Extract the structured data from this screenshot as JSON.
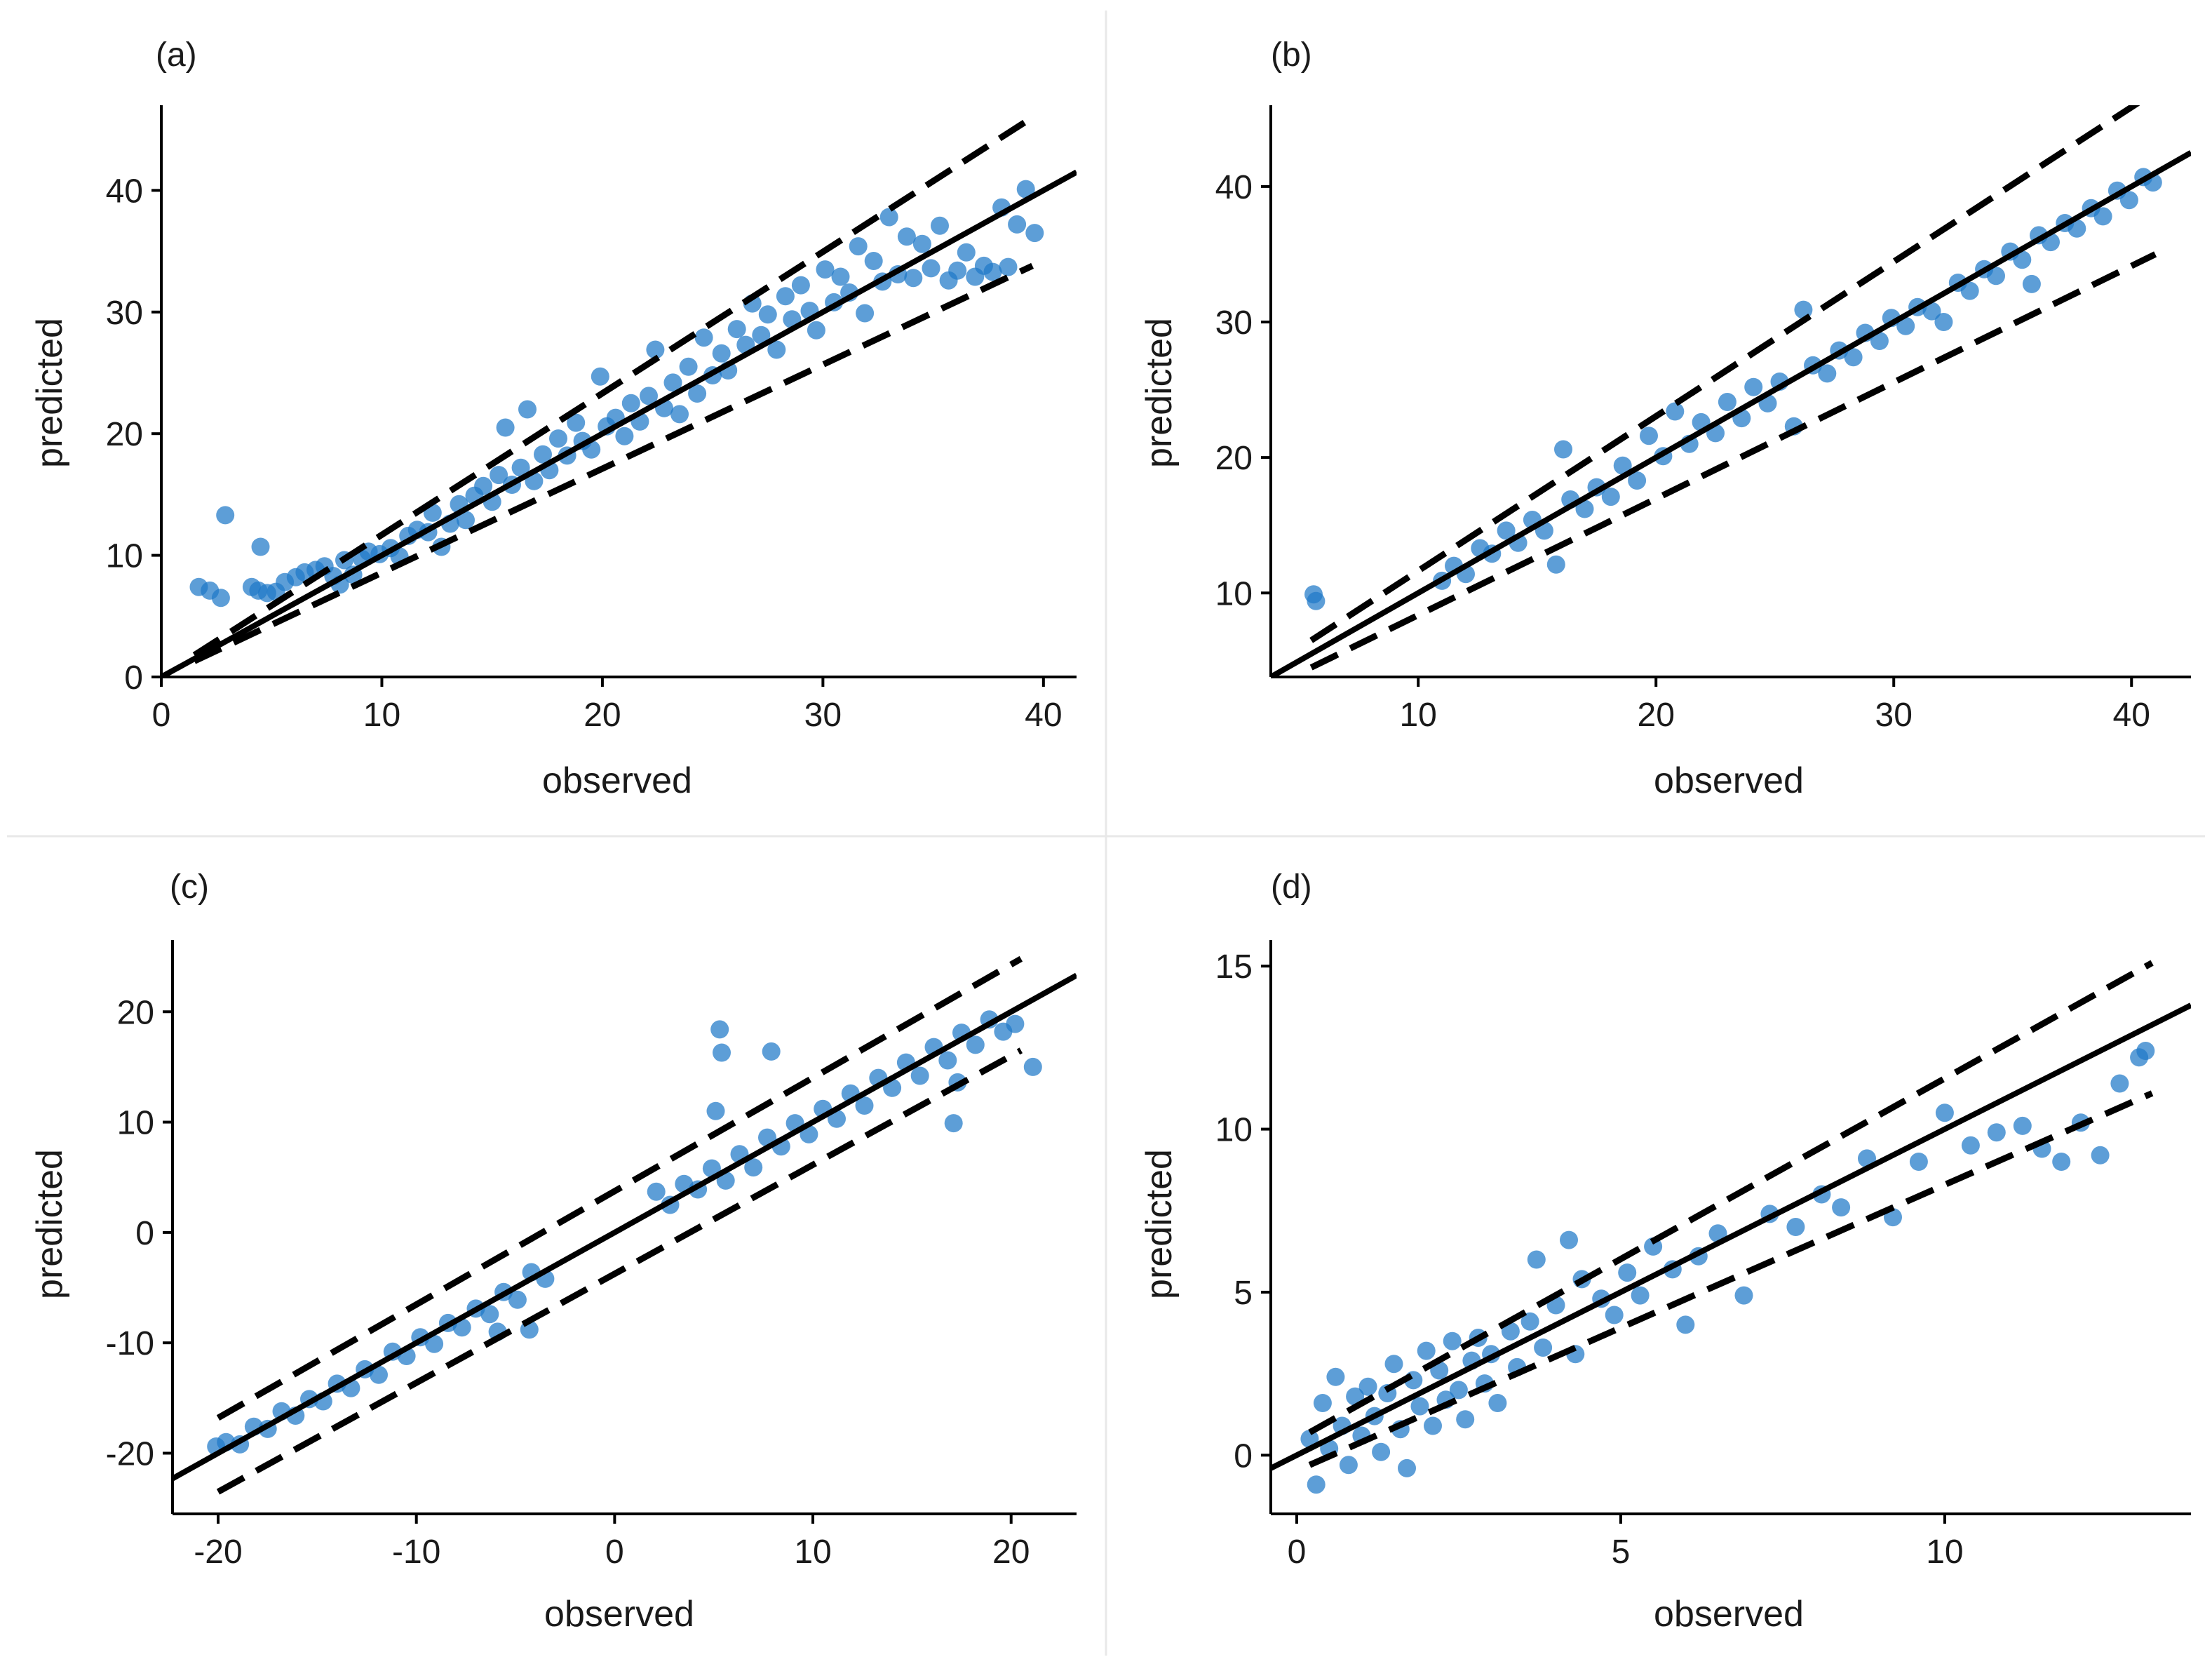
{
  "colors": {
    "point": "#1f78c8",
    "line": "#000000",
    "separator": "#e8e8e8"
  },
  "chart_data": [
    {
      "type": "scatter",
      "panel_label": "(a)",
      "xlabel": "observed",
      "ylabel": "predicted",
      "xlim": [
        0,
        41.5
      ],
      "ylim": [
        0,
        47
      ],
      "xticks": [
        0,
        10,
        20,
        30,
        40
      ],
      "yticks": [
        0,
        10,
        20,
        30,
        40
      ],
      "xtick_labels": [
        "0",
        "10",
        "20",
        "30",
        "40"
      ],
      "ytick_labels": [
        "0",
        "10",
        "20",
        "30",
        "40"
      ],
      "fit_line": {
        "slope": 1.0,
        "intercept": 0,
        "x": [
          0,
          41.5
        ]
      },
      "band_upper": {
        "x": [
          1.5,
          39.5
        ],
        "y": [
          1.8,
          46.0
        ]
      },
      "band_lower": {
        "x": [
          1.5,
          39.5
        ],
        "y": [
          1.3,
          33.8
        ]
      },
      "points": [
        [
          1.7,
          7.4
        ],
        [
          2.2,
          7.1
        ],
        [
          2.7,
          6.5
        ],
        [
          2.9,
          13.3
        ],
        [
          4.1,
          7.4
        ],
        [
          4.4,
          7.1
        ],
        [
          4.5,
          10.7
        ],
        [
          4.8,
          6.9
        ],
        [
          5.2,
          7.0
        ],
        [
          5.6,
          7.8
        ],
        [
          6.1,
          8.2
        ],
        [
          6.5,
          8.6
        ],
        [
          7.0,
          8.8
        ],
        [
          7.4,
          9.1
        ],
        [
          7.8,
          8.3
        ],
        [
          8.1,
          7.6
        ],
        [
          8.3,
          9.6
        ],
        [
          8.7,
          8.4
        ],
        [
          9.1,
          9.7
        ],
        [
          9.4,
          10.3
        ],
        [
          9.9,
          10.1
        ],
        [
          10.4,
          10.6
        ],
        [
          10.8,
          9.9
        ],
        [
          11.2,
          11.6
        ],
        [
          11.6,
          12.1
        ],
        [
          12.1,
          11.9
        ],
        [
          12.3,
          13.5
        ],
        [
          12.7,
          10.7
        ],
        [
          13.1,
          12.6
        ],
        [
          13.5,
          14.2
        ],
        [
          13.8,
          12.9
        ],
        [
          14.2,
          14.9
        ],
        [
          14.6,
          15.7
        ],
        [
          15.0,
          14.4
        ],
        [
          15.3,
          16.6
        ],
        [
          15.6,
          20.5
        ],
        [
          15.9,
          15.8
        ],
        [
          16.3,
          17.2
        ],
        [
          16.6,
          22.0
        ],
        [
          16.9,
          16.1
        ],
        [
          17.3,
          18.3
        ],
        [
          17.6,
          17.0
        ],
        [
          18.0,
          19.6
        ],
        [
          18.4,
          18.2
        ],
        [
          18.8,
          20.9
        ],
        [
          19.1,
          19.4
        ],
        [
          19.5,
          18.7
        ],
        [
          19.9,
          24.7
        ],
        [
          20.2,
          20.6
        ],
        [
          20.6,
          21.3
        ],
        [
          21.0,
          19.8
        ],
        [
          21.3,
          22.5
        ],
        [
          21.7,
          21.0
        ],
        [
          22.1,
          23.1
        ],
        [
          22.4,
          26.9
        ],
        [
          22.8,
          22.1
        ],
        [
          23.2,
          24.2
        ],
        [
          23.5,
          21.6
        ],
        [
          23.9,
          25.5
        ],
        [
          24.3,
          23.3
        ],
        [
          24.6,
          27.9
        ],
        [
          25.0,
          24.8
        ],
        [
          25.4,
          26.6
        ],
        [
          25.7,
          25.2
        ],
        [
          26.1,
          28.6
        ],
        [
          26.5,
          27.3
        ],
        [
          26.8,
          30.7
        ],
        [
          27.2,
          28.1
        ],
        [
          27.5,
          29.8
        ],
        [
          27.9,
          26.9
        ],
        [
          28.3,
          31.3
        ],
        [
          28.6,
          29.4
        ],
        [
          29.0,
          32.2
        ],
        [
          29.4,
          30.1
        ],
        [
          29.7,
          28.5
        ],
        [
          30.1,
          33.5
        ],
        [
          30.5,
          30.8
        ],
        [
          30.8,
          32.9
        ],
        [
          31.2,
          31.6
        ],
        [
          31.6,
          35.4
        ],
        [
          31.9,
          29.9
        ],
        [
          32.3,
          34.2
        ],
        [
          32.7,
          32.5
        ],
        [
          33.0,
          37.8
        ],
        [
          33.4,
          33.1
        ],
        [
          33.8,
          36.2
        ],
        [
          34.1,
          32.8
        ],
        [
          34.5,
          35.6
        ],
        [
          34.9,
          33.6
        ],
        [
          35.3,
          37.1
        ],
        [
          35.7,
          32.6
        ],
        [
          36.1,
          33.4
        ],
        [
          36.5,
          34.9
        ],
        [
          36.9,
          32.9
        ],
        [
          37.3,
          33.8
        ],
        [
          37.7,
          33.3
        ],
        [
          38.1,
          38.6
        ],
        [
          38.4,
          33.7
        ],
        [
          38.8,
          37.2
        ],
        [
          39.2,
          40.1
        ],
        [
          39.6,
          36.5
        ]
      ]
    },
    {
      "type": "scatter",
      "panel_label": "(b)",
      "xlabel": "observed",
      "ylabel": "predicted",
      "xlim": [
        3.8,
        42.5
      ],
      "ylim": [
        3.8,
        46
      ],
      "xticks": [
        10,
        20,
        30,
        40
      ],
      "yticks": [
        10,
        20,
        30,
        40
      ],
      "xtick_labels": [
        "10",
        "20",
        "30",
        "40"
      ],
      "ytick_labels": [
        "10",
        "20",
        "30",
        "40"
      ],
      "fit_line": {
        "slope": 1.0,
        "intercept": 0,
        "x": [
          3.8,
          42.5
        ]
      },
      "band_upper": {
        "x": [
          5.5,
          41
        ],
        "y": [
          6.5,
          47
        ]
      },
      "band_lower": {
        "x": [
          5.5,
          41
        ],
        "y": [
          4.5,
          35
        ]
      },
      "points": [
        [
          5.6,
          9.9
        ],
        [
          5.7,
          9.4
        ],
        [
          11.0,
          10.9
        ],
        [
          11.5,
          12.0
        ],
        [
          12.0,
          11.4
        ],
        [
          12.6,
          13.3
        ],
        [
          13.1,
          12.9
        ],
        [
          13.7,
          14.6
        ],
        [
          14.2,
          13.7
        ],
        [
          14.8,
          15.4
        ],
        [
          15.3,
          14.6
        ],
        [
          15.8,
          12.1
        ],
        [
          16.1,
          20.6
        ],
        [
          16.4,
          16.9
        ],
        [
          17.0,
          16.2
        ],
        [
          17.5,
          17.8
        ],
        [
          18.1,
          17.1
        ],
        [
          18.6,
          19.4
        ],
        [
          19.2,
          18.3
        ],
        [
          19.7,
          21.6
        ],
        [
          20.3,
          20.1
        ],
        [
          20.8,
          23.4
        ],
        [
          21.4,
          21.0
        ],
        [
          21.9,
          22.6
        ],
        [
          22.5,
          21.8
        ],
        [
          23.0,
          24.1
        ],
        [
          23.6,
          22.9
        ],
        [
          24.1,
          25.2
        ],
        [
          24.7,
          24.0
        ],
        [
          25.2,
          25.6
        ],
        [
          25.8,
          22.3
        ],
        [
          26.2,
          30.9
        ],
        [
          26.6,
          26.8
        ],
        [
          27.2,
          26.2
        ],
        [
          27.7,
          27.9
        ],
        [
          28.3,
          27.4
        ],
        [
          28.8,
          29.2
        ],
        [
          29.4,
          28.6
        ],
        [
          29.9,
          30.3
        ],
        [
          30.5,
          29.7
        ],
        [
          31.0,
          31.1
        ],
        [
          31.6,
          30.8
        ],
        [
          32.1,
          30.0
        ],
        [
          32.7,
          32.9
        ],
        [
          33.2,
          32.3
        ],
        [
          33.8,
          33.9
        ],
        [
          34.3,
          33.4
        ],
        [
          34.9,
          35.2
        ],
        [
          35.4,
          34.6
        ],
        [
          35.8,
          32.8
        ],
        [
          36.1,
          36.4
        ],
        [
          36.6,
          35.9
        ],
        [
          37.2,
          37.3
        ],
        [
          37.7,
          36.9
        ],
        [
          38.3,
          38.4
        ],
        [
          38.8,
          37.8
        ],
        [
          39.4,
          39.7
        ],
        [
          39.9,
          39.0
        ],
        [
          40.5,
          40.7
        ],
        [
          40.9,
          40.3
        ]
      ]
    },
    {
      "type": "scatter",
      "panel_label": "(c)",
      "xlabel": "observed",
      "ylabel": "predicted",
      "xlim": [
        -22.3,
        23.3
      ],
      "ylim": [
        -25.5,
        26.5
      ],
      "xticks": [
        -20,
        -10,
        0,
        10,
        20
      ],
      "yticks": [
        -20,
        -10,
        0,
        10,
        20
      ],
      "xtick_labels": [
        "-20",
        "-10",
        "0",
        "10",
        "20"
      ],
      "ytick_labels": [
        "-20",
        "-10",
        "0",
        "10",
        "20"
      ],
      "fit_line": {
        "slope": 1.0,
        "intercept": 0,
        "x": [
          -22.3,
          23.3
        ]
      },
      "band_upper": {
        "x": [
          -20,
          20.5
        ],
        "y": [
          -16.8,
          24.8
        ]
      },
      "band_lower": {
        "x": [
          -20,
          20.5
        ],
        "y": [
          -23.5,
          16.5
        ]
      },
      "points": [
        [
          -20.1,
          -19.4
        ],
        [
          -19.6,
          -19.0
        ],
        [
          -18.9,
          -19.2
        ],
        [
          -18.2,
          -17.6
        ],
        [
          -17.5,
          -17.8
        ],
        [
          -16.8,
          -16.2
        ],
        [
          -16.1,
          -16.6
        ],
        [
          -15.4,
          -15.1
        ],
        [
          -14.7,
          -15.3
        ],
        [
          -14.0,
          -13.7
        ],
        [
          -13.3,
          -14.1
        ],
        [
          -12.6,
          -12.4
        ],
        [
          -11.9,
          -12.9
        ],
        [
          -11.2,
          -10.8
        ],
        [
          -10.5,
          -11.2
        ],
        [
          -9.8,
          -9.5
        ],
        [
          -9.1,
          -10.1
        ],
        [
          -8.4,
          -8.2
        ],
        [
          -7.7,
          -8.6
        ],
        [
          -7.0,
          -6.9
        ],
        [
          -6.3,
          -7.4
        ],
        [
          -5.9,
          -9.0
        ],
        [
          -5.6,
          -5.4
        ],
        [
          -4.9,
          -6.1
        ],
        [
          -4.3,
          -8.8
        ],
        [
          -4.2,
          -3.6
        ],
        [
          -3.5,
          -4.2
        ],
        [
          2.1,
          3.7
        ],
        [
          2.8,
          2.5
        ],
        [
          3.5,
          4.4
        ],
        [
          4.2,
          3.9
        ],
        [
          4.9,
          5.8
        ],
        [
          5.1,
          11.0
        ],
        [
          5.3,
          18.4
        ],
        [
          5.4,
          16.3
        ],
        [
          5.6,
          4.7
        ],
        [
          6.3,
          7.1
        ],
        [
          7.0,
          5.9
        ],
        [
          7.7,
          8.6
        ],
        [
          7.9,
          16.4
        ],
        [
          8.4,
          7.8
        ],
        [
          9.1,
          9.9
        ],
        [
          9.8,
          8.9
        ],
        [
          10.5,
          11.2
        ],
        [
          11.2,
          10.3
        ],
        [
          11.9,
          12.6
        ],
        [
          12.6,
          11.5
        ],
        [
          13.3,
          14.0
        ],
        [
          14.0,
          13.1
        ],
        [
          14.7,
          15.4
        ],
        [
          15.4,
          14.2
        ],
        [
          16.1,
          16.8
        ],
        [
          16.8,
          15.6
        ],
        [
          17.1,
          9.9
        ],
        [
          17.3,
          13.6
        ],
        [
          17.5,
          18.1
        ],
        [
          18.2,
          17.0
        ],
        [
          18.9,
          19.3
        ],
        [
          19.6,
          18.2
        ],
        [
          20.2,
          18.9
        ],
        [
          21.1,
          15.0
        ]
      ]
    },
    {
      "type": "scatter",
      "panel_label": "(d)",
      "xlabel": "observed",
      "ylabel": "predicted",
      "xlim": [
        -0.4,
        13.8
      ],
      "ylim": [
        -1.8,
        15.8
      ],
      "xticks": [
        0,
        5,
        10
      ],
      "yticks": [
        0,
        5,
        10,
        15
      ],
      "xtick_labels": [
        "0",
        "5",
        "10"
      ],
      "ytick_labels": [
        "0",
        "5",
        "10",
        "15"
      ],
      "fit_line": {
        "slope": 1.0,
        "intercept": 0,
        "x": [
          -0.4,
          13.8
        ]
      },
      "band_upper": {
        "x": [
          0.2,
          13.2
        ],
        "y": [
          0.7,
          15.1
        ]
      },
      "band_lower": {
        "x": [
          0.2,
          13.2
        ],
        "y": [
          -0.3,
          11.1
        ]
      },
      "points": [
        [
          0.2,
          0.5
        ],
        [
          0.3,
          -0.9
        ],
        [
          0.4,
          1.6
        ],
        [
          0.5,
          0.2
        ],
        [
          0.6,
          2.4
        ],
        [
          0.7,
          0.9
        ],
        [
          0.8,
          -0.3
        ],
        [
          0.9,
          1.8
        ],
        [
          1.0,
          0.6
        ],
        [
          1.1,
          2.1
        ],
        [
          1.2,
          1.2
        ],
        [
          1.3,
          0.1
        ],
        [
          1.4,
          1.9
        ],
        [
          1.5,
          2.8
        ],
        [
          1.6,
          0.8
        ],
        [
          1.7,
          -0.4
        ],
        [
          1.8,
          2.3
        ],
        [
          1.9,
          1.5
        ],
        [
          2.0,
          3.2
        ],
        [
          2.1,
          0.9
        ],
        [
          2.2,
          2.6
        ],
        [
          2.3,
          1.7
        ],
        [
          2.4,
          3.5
        ],
        [
          2.5,
          2.0
        ],
        [
          2.6,
          1.1
        ],
        [
          2.7,
          2.9
        ],
        [
          2.8,
          3.6
        ],
        [
          2.9,
          2.2
        ],
        [
          3.0,
          3.1
        ],
        [
          3.1,
          1.6
        ],
        [
          3.3,
          3.8
        ],
        [
          3.4,
          2.7
        ],
        [
          3.6,
          4.1
        ],
        [
          3.7,
          6.0
        ],
        [
          3.8,
          3.3
        ],
        [
          4.0,
          4.6
        ],
        [
          4.2,
          6.6
        ],
        [
          4.3,
          3.1
        ],
        [
          4.4,
          5.4
        ],
        [
          4.7,
          4.8
        ],
        [
          4.9,
          4.3
        ],
        [
          5.1,
          5.6
        ],
        [
          5.3,
          4.9
        ],
        [
          5.5,
          6.4
        ],
        [
          5.8,
          5.7
        ],
        [
          6.0,
          4.0
        ],
        [
          6.2,
          6.1
        ],
        [
          6.5,
          6.8
        ],
        [
          6.9,
          4.9
        ],
        [
          7.3,
          7.4
        ],
        [
          7.7,
          7.0
        ],
        [
          8.1,
          8.0
        ],
        [
          8.4,
          7.6
        ],
        [
          8.8,
          9.1
        ],
        [
          9.2,
          7.3
        ],
        [
          9.6,
          9.0
        ],
        [
          10.0,
          10.5
        ],
        [
          10.4,
          9.5
        ],
        [
          10.8,
          9.9
        ],
        [
          11.2,
          10.1
        ],
        [
          11.5,
          9.4
        ],
        [
          11.8,
          9.0
        ],
        [
          12.1,
          10.2
        ],
        [
          12.4,
          9.2
        ],
        [
          12.7,
          11.4
        ],
        [
          13.0,
          12.2
        ],
        [
          13.1,
          12.4
        ]
      ]
    }
  ]
}
